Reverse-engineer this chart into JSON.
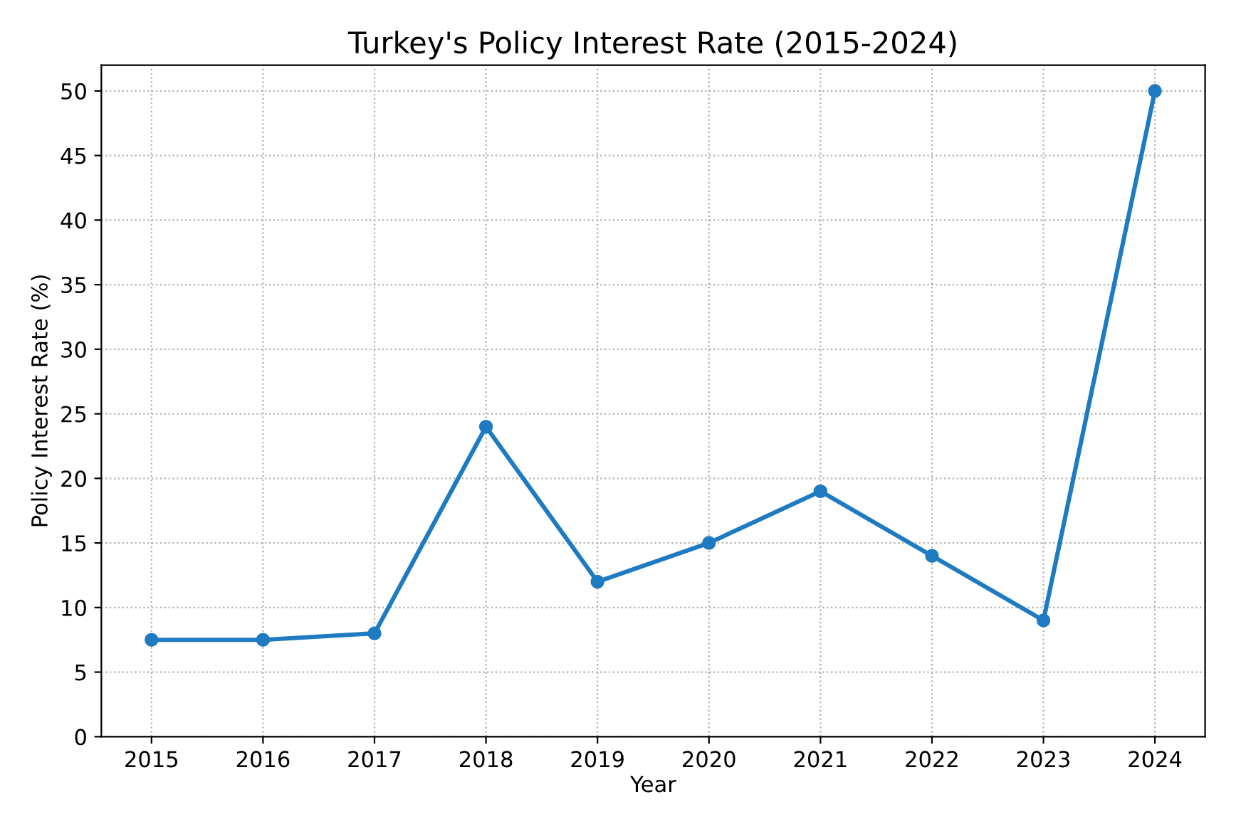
{
  "chart_data": {
    "type": "line",
    "title": "Turkey's Policy Interest Rate (2015-2024)",
    "xlabel": "Year",
    "ylabel": "Policy Interest Rate (%)",
    "x": [
      2015,
      2016,
      2017,
      2018,
      2019,
      2020,
      2021,
      2022,
      2023,
      2024
    ],
    "series": [
      {
        "color": "#1f7bc1",
        "values": [
          7.5,
          7.5,
          8,
          24,
          12,
          15,
          19,
          14,
          9,
          50
        ]
      }
    ],
    "xlim": [
      2014.55,
      2024.45
    ],
    "xticks": [
      2015,
      2016,
      2017,
      2018,
      2019,
      2020,
      2021,
      2022,
      2023,
      2024
    ],
    "ylim": [
      0,
      52
    ],
    "yticks": [
      0,
      5,
      10,
      15,
      20,
      25,
      30,
      35,
      40,
      45,
      50
    ],
    "grid": true,
    "marker": "circle",
    "line_style": "solid"
  }
}
